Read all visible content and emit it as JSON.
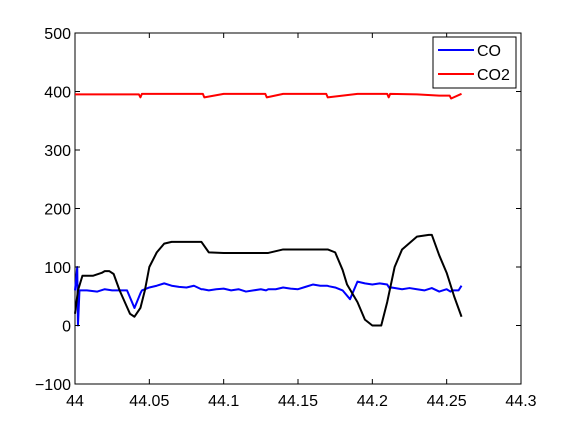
{
  "chart_data": {
    "type": "line",
    "title": "",
    "xlabel": "",
    "ylabel": "",
    "xlim": [
      44,
      44.3
    ],
    "ylim": [
      -100,
      500
    ],
    "x_ticks": [
      44,
      44.05,
      44.1,
      44.15,
      44.2,
      44.25,
      44.3
    ],
    "x_tick_labels": [
      "44",
      "44.05",
      "44.1",
      "44.15",
      "44.2",
      "44.25",
      "44.3"
    ],
    "y_ticks": [
      -100,
      0,
      100,
      200,
      300,
      400,
      500
    ],
    "y_tick_labels": [
      "−100",
      "0",
      "100",
      "200",
      "300",
      "400",
      "500"
    ],
    "grid": false,
    "legend_position": "top-right",
    "legend": [
      {
        "label": "CO",
        "color": "#0000ff"
      },
      {
        "label": "CO2",
        "color": "#ff0000"
      }
    ],
    "series": [
      {
        "name": "CO",
        "color": "#0000ff",
        "x": [
          44.0,
          44.0015,
          44.002,
          44.003,
          44.008,
          44.015,
          44.02,
          44.025,
          44.03,
          44.035,
          44.04,
          44.044,
          44.045,
          44.05,
          44.055,
          44.06,
          44.065,
          44.07,
          44.075,
          44.08,
          44.085,
          44.086,
          44.09,
          44.095,
          44.1,
          44.105,
          44.11,
          44.115,
          44.12,
          44.125,
          44.1285,
          44.13,
          44.135,
          44.14,
          44.145,
          44.15,
          44.155,
          44.16,
          44.165,
          44.1695,
          44.171,
          44.175,
          44.18,
          44.185,
          44.19,
          44.195,
          44.2,
          44.205,
          44.21,
          44.2115,
          44.213,
          44.22,
          44.225,
          44.23,
          44.235,
          44.24,
          44.245,
          44.25,
          44.2525,
          44.254,
          44.258,
          44.26
        ],
        "y": [
          60,
          100,
          0,
          60,
          60,
          58,
          62,
          60,
          60,
          60,
          30,
          55,
          60,
          65,
          68,
          72,
          68,
          66,
          65,
          68,
          62,
          62,
          60,
          62,
          63,
          60,
          62,
          58,
          60,
          62,
          60,
          62,
          62,
          65,
          63,
          62,
          66,
          70,
          68,
          68,
          67,
          65,
          60,
          45,
          75,
          72,
          70,
          72,
          70,
          64,
          65,
          62,
          64,
          62,
          60,
          64,
          58,
          62,
          58,
          60,
          60,
          68
        ]
      },
      {
        "name": "CO2",
        "color": "#ff0000",
        "x": [
          44.0,
          44.02,
          44.043,
          44.044,
          44.045,
          44.06,
          44.08,
          44.086,
          44.087,
          44.1,
          44.12,
          44.128,
          44.129,
          44.14,
          44.16,
          44.169,
          44.17,
          44.19,
          44.21,
          44.211,
          44.212,
          44.23,
          44.245,
          44.252,
          44.253,
          44.26
        ],
        "y": [
          395,
          395,
          395,
          390,
          396,
          396,
          396,
          396,
          390,
          396,
          396,
          396,
          390,
          396,
          396,
          396,
          390,
          396,
          396,
          390,
          396,
          395,
          393,
          393,
          388,
          396
        ]
      },
      {
        "name": "",
        "color": "#000000",
        "x": [
          44.0,
          44.002,
          44.005,
          44.012,
          44.018,
          44.02,
          44.023,
          44.026,
          44.03,
          44.037,
          44.04,
          44.044,
          44.047,
          44.05,
          44.055,
          44.06,
          44.065,
          44.08,
          44.085,
          44.09,
          44.1,
          44.13,
          44.14,
          44.15,
          44.17,
          44.175,
          44.18,
          44.183,
          44.19,
          44.195,
          44.2,
          44.203,
          44.206,
          44.21,
          44.215,
          44.22,
          44.23,
          44.238,
          44.24,
          44.245,
          44.25,
          44.255,
          44.26
        ],
        "y": [
          20,
          60,
          85,
          85,
          90,
          93,
          93,
          88,
          60,
          20,
          15,
          30,
          60,
          100,
          125,
          140,
          143,
          143,
          143,
          125,
          124,
          124,
          130,
          130,
          130,
          125,
          95,
          70,
          40,
          10,
          0,
          0,
          0,
          40,
          100,
          130,
          152,
          155,
          155,
          120,
          90,
          50,
          15
        ]
      }
    ]
  }
}
